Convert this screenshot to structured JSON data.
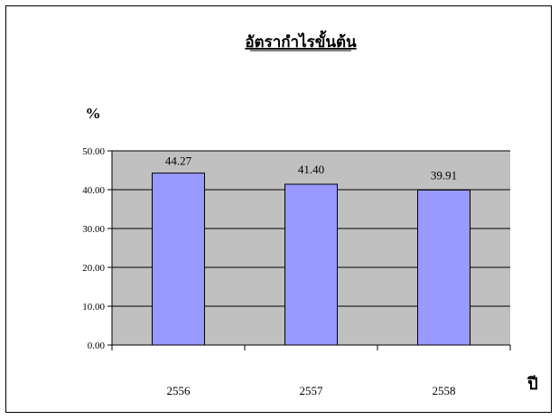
{
  "chart_data": {
    "type": "bar",
    "title": "อัตรากำไรขั้นต้น",
    "ylabel": "%",
    "xlabel": "ปี",
    "categories": [
      "2556",
      "2557",
      "2558"
    ],
    "values": [
      44.27,
      41.4,
      39.91
    ],
    "value_labels": [
      "44.27",
      "41.40",
      "39.91"
    ],
    "ylim": [
      0,
      50
    ],
    "yticks": [
      "0.00",
      "10.00",
      "20.00",
      "30.00",
      "40.00",
      "50.00"
    ],
    "grid": true,
    "legend": "none",
    "colors": {
      "bar_fill": "#9999ff",
      "plot_background": "#c0c0c0",
      "gridline": "#000000"
    }
  }
}
